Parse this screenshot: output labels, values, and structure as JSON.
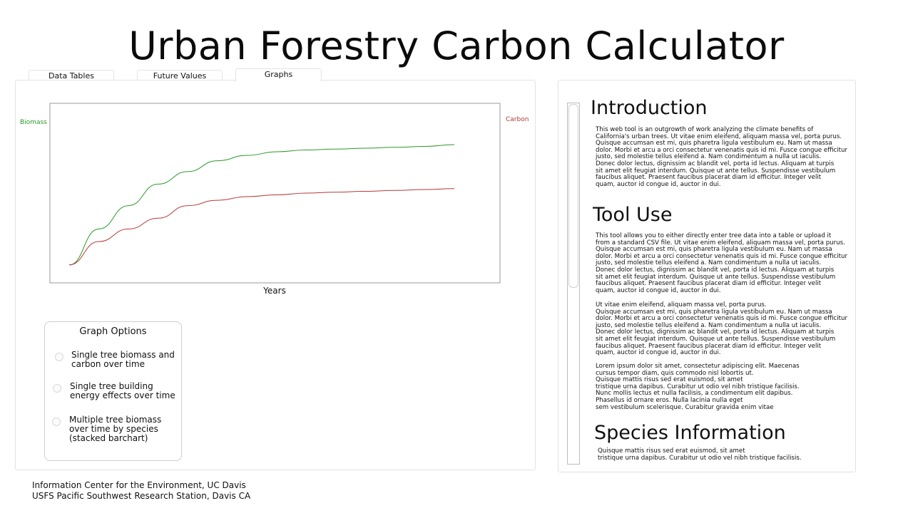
{
  "app": {
    "title": "Urban Forestry Carbon Calculator"
  },
  "tabs": [
    {
      "label": "Data Tables",
      "active": false
    },
    {
      "label": "Future Values",
      "active": false
    },
    {
      "label": "Graphs",
      "active": true
    }
  ],
  "chart_data": {
    "type": "line",
    "title": "",
    "xlabel": "Years",
    "ylabel_left": "Biomass",
    "ylabel_right": "Carbon",
    "grid": false,
    "series": [
      {
        "name": "Biomass",
        "color": "#2a9a2a",
        "y": [
          0.1,
          0.3,
          0.43,
          0.55,
          0.62,
          0.68,
          0.71,
          0.73,
          0.74,
          0.745,
          0.75,
          0.755,
          0.76,
          0.77
        ]
      },
      {
        "name": "Carbon",
        "color": "#b23a3a",
        "y": [
          0.1,
          0.23,
          0.3,
          0.36,
          0.43,
          0.46,
          0.48,
          0.49,
          0.5,
          0.505,
          0.51,
          0.515,
          0.52,
          0.525
        ]
      }
    ],
    "ylim": [
      0,
      1
    ]
  },
  "graph_options": {
    "title": "Graph Options",
    "options": [
      {
        "label": "Single tree biomass and\ncarbon over time",
        "selected": false
      },
      {
        "label": "Single tree building\nenergy effects over time",
        "selected": false
      },
      {
        "label": "Multiple tree biomass\nover time by species\n(stacked barchart)",
        "selected": false
      }
    ]
  },
  "info_panel": {
    "intro_heading": "Introduction",
    "intro_text": "This web tool is an outgrowth of work analyzing the climate benefits of\nCalifornia's urban trees. Ut vitae enim eleifend, aliquam massa vel, porta purus.\nQuisque accumsan est mi, quis pharetra ligula vestibulum eu. Nam ut massa\ndolor. Morbi et arcu a orci consectetur venenatis quis id mi. Fusce congue efficitur\njusto, sed molestie tellus eleifend a. Nam condimentum a nulla ut iaculis.\nDonec dolor lectus, dignissim ac blandit vel, porta id lectus. Aliquam at turpis\nsit amet elit feugiat interdum. Quisque ut ante tellus. Suspendisse vestibulum\nfaucibus aliquet. Praesent faucibus placerat diam id efficitur. Integer velit\nquam, auctor id congue id, auctor in dui.",
    "tool_heading": "Tool Use",
    "tool_text_1": "This tool allows you to either directly enter tree data into a table or upload it\nfrom a standard CSV file.  Ut vitae enim eleifend, aliquam massa vel, porta purus.\nQuisque accumsan est mi, quis pharetra ligula vestibulum eu. Nam ut massa\ndolor. Morbi et arcu a orci consectetur venenatis quis id mi. Fusce congue efficitur\njusto, sed molestie tellus eleifend a. Nam condimentum a nulla ut iaculis.\nDonec dolor lectus, dignissim ac blandit vel, porta id lectus. Aliquam at turpis\nsit amet elit feugiat interdum. Quisque ut ante tellus. Suspendisse vestibulum\nfaucibus aliquet. Praesent faucibus placerat diam id efficitur. Integer velit\nquam, auctor id congue id, auctor in dui.",
    "tool_text_2": "Ut vitae enim eleifend, aliquam massa vel, porta purus.\nQuisque accumsan est mi, quis pharetra ligula vestibulum eu. Nam ut massa\ndolor. Morbi et arcu a orci consectetur venenatis quis id mi. Fusce congue efficitur\njusto, sed molestie tellus eleifend a. Nam condimentum a nulla ut iaculis.\nDonec dolor lectus, dignissim ac blandit vel, porta id lectus. Aliquam at turpis\nsit amet elit feugiat interdum. Quisque ut ante tellus. Suspendisse vestibulum\nfaucibus aliquet. Praesent faucibus placerat diam id efficitur. Integer velit\nquam, auctor id congue id, auctor in dui.",
    "tool_text_3": "Lorem ipsum dolor sit amet, consectetur adipiscing elit. Maecenas\ncursus tempor diam, quis commodo nisl lobortis ut.\nQuisque mattis risus sed erat euismod, sit amet\ntristique urna dapibus. Curabitur ut odio vel nibh tristique facilisis.\nNunc mollis lectus et nulla facilisis, a condimentum elit dapibus.\n Phasellus id ornare eros. Nulla lacinia nulla eget\nsem vestibulum scelerisque. Curabitur gravida enim vitae",
    "species_heading": "Species Information",
    "species_text": "Quisque mattis risus sed erat euismod, sit amet\ntristique urna dapibus. Curabitur ut odio vel nibh tristique facilisis."
  },
  "footer": {
    "line1": "Information Center for the Environment, UC Davis",
    "line2": "USFS Pacific Southwest Research Station, Davis CA"
  }
}
